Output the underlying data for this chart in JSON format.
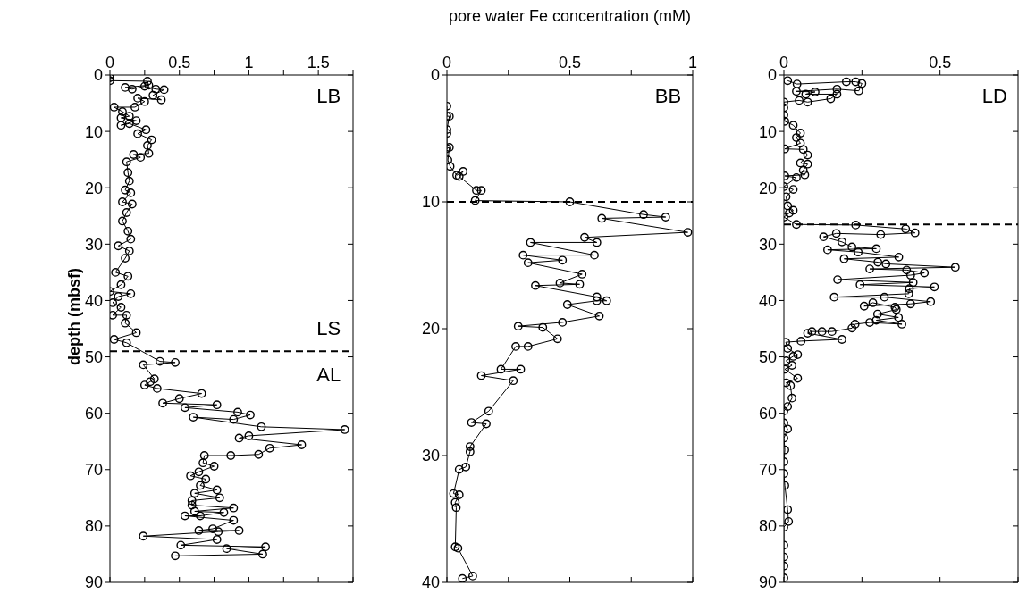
{
  "chart_data": [
    {
      "type": "line",
      "ylabel": "depth (mbsf)",
      "xlim": [
        0,
        1.75
      ],
      "xticks": [
        0,
        {
          "value": 0.25,
          "label": null
        },
        0.5,
        {
          "value": 0.75,
          "label": null
        },
        1,
        {
          "value": 1.25,
          "label": null
        },
        1.5,
        {
          "value": 1.75,
          "label": null
        }
      ],
      "ylim": [
        90,
        0
      ],
      "yticks": [
        0,
        10,
        20,
        30,
        40,
        50,
        60,
        70,
        80,
        90
      ],
      "marker": "circle",
      "grid": false,
      "legend": false,
      "ref_lines": [
        {
          "axis": "y",
          "value": 49,
          "line_style": "dashed",
          "color": "#000000"
        }
      ],
      "annotations": [
        "LB",
        "LS",
        "AL"
      ],
      "series": [
        {
          "color": "#000000",
          "x": [
            0,
            0,
            0,
            0.27,
            0.28,
            0.11,
            0.16,
            0.25,
            0.33,
            0.39,
            0.31,
            0.37,
            0.2,
            0.25,
            0.18,
            0.03,
            0.09,
            0.14,
            0.08,
            0.19,
            0.08,
            0.14,
            0.26,
            0.2,
            0.3,
            0.27,
            0.28,
            0.17,
            0.22,
            0.12,
            0.13,
            0.14,
            0.11,
            0.15,
            0.09,
            0.16,
            0.12,
            0.09,
            0.13,
            0.15,
            0.06,
            0.14,
            0.11,
            0.04,
            0.13,
            0.08,
            0,
            0.15,
            0.06,
            0.02,
            0.08,
            0.02,
            0.12,
            0.11,
            0.19,
            0.03,
            0.12,
            0.36,
            0.47,
            0.24,
            0.32,
            0.29,
            0.25,
            0.34,
            0.66,
            0.5,
            0.38,
            0.77,
            0.54,
            0.92,
            1.01,
            0.89,
            0.6,
            1.09,
            1.69,
            1.0,
            0.93,
            1.38,
            1.15,
            1.07,
            0.87,
            0.68,
            0.67,
            0.75,
            0.64,
            0.58,
            0.69,
            0.65,
            0.77,
            0.61,
            0.79,
            0.59,
            0.59,
            0.89,
            0.61,
            0.82,
            0.65,
            0.54,
            0.89,
            0.74,
            0.64,
            0.93,
            0.78,
            0.24,
            0.77,
            0.51,
            1.12,
            0.84,
            1.1,
            0.47
          ],
          "values": [
            0,
            0.5,
            1,
            1.1,
            1.8,
            2.2,
            2.5,
            2,
            2.5,
            2.6,
            3.6,
            4.4,
            4.1,
            4.7,
            5.7,
            5.7,
            6.5,
            7.3,
            7.6,
            8.1,
            8.9,
            8.6,
            9.7,
            10.4,
            11.5,
            12.5,
            13.9,
            14.1,
            14.6,
            15.4,
            17.3,
            18.8,
            20.4,
            20.9,
            22.5,
            22.9,
            24.4,
            25.9,
            27.7,
            29.1,
            30.3,
            31.2,
            32.5,
            35,
            35.7,
            37.2,
            38.4,
            38.8,
            39.3,
            40.4,
            41.2,
            42.6,
            42.6,
            44,
            45.7,
            46.9,
            47.5,
            50.8,
            51,
            51.4,
            53.9,
            54.4,
            55,
            55.6,
            56.5,
            57.4,
            58.2,
            58.5,
            59,
            59.8,
            60.3,
            61.1,
            60.7,
            62.4,
            62.9,
            64,
            64.4,
            65.6,
            66.2,
            67.3,
            67.5,
            67.5,
            68.8,
            69.4,
            70.4,
            71.1,
            71.7,
            72.8,
            73.6,
            74.2,
            75,
            75.5,
            76.3,
            76.8,
            77.4,
            77.6,
            78.2,
            78.2,
            79,
            80.5,
            80.8,
            80.8,
            81,
            81.8,
            82.4,
            83.4,
            83.7,
            84,
            85,
            85.3
          ]
        }
      ]
    },
    {
      "type": "line",
      "xlabel": "pore water Fe concentration (mM)",
      "xlim": [
        0,
        1
      ],
      "xticks": [
        0,
        {
          "value": 0.25,
          "label": null
        },
        0.5,
        {
          "value": 0.75,
          "label": null
        },
        1
      ],
      "ylim": [
        40,
        0
      ],
      "yticks": [
        0,
        10,
        20,
        30,
        40
      ],
      "marker": "circle",
      "grid": false,
      "legend": false,
      "ref_lines": [
        {
          "axis": "y",
          "value": 10,
          "line_style": "dashed",
          "color": "#000000"
        }
      ],
      "annotations": [
        "BB"
      ],
      "series": [
        {
          "color": "#000000",
          "x": [
            0,
            0,
            0.01,
            0,
            0,
            0,
            0.01,
            0.004,
            0.013,
            0.04,
            0.066,
            0.05,
            0.12,
            0.14,
            0.115,
            0.5,
            0.8,
            0.89,
            0.63,
            0.98,
            0.56,
            0.61,
            0.34,
            0.6,
            0.31,
            0.47,
            0.33,
            0.55,
            0.46,
            0.54,
            0.36,
            0.61,
            0.65,
            0.61,
            0.49,
            0.62,
            0.47,
            0.29,
            0.39,
            0.45,
            0.33,
            0.28,
            0.22,
            0.3,
            0.14,
            0.27,
            0.17,
            0.1,
            0.16,
            0.094,
            0.094,
            0.077,
            0.05,
            0.027,
            0.05,
            0.034,
            0.038,
            0.034,
            0.045,
            0.105,
            0.063
          ],
          "values": [
            2.45,
            3.25,
            3.25,
            4.3,
            4.6,
            5.8,
            5.7,
            6.7,
            7.2,
            7.9,
            7.6,
            8,
            9.1,
            9.1,
            9.9,
            10,
            11,
            11.2,
            11.3,
            12.4,
            12.8,
            13.2,
            13.2,
            14.2,
            14.2,
            14.6,
            14.8,
            15.7,
            16.4,
            16.5,
            16.6,
            17.5,
            17.8,
            17.8,
            18.1,
            19,
            19.5,
            19.8,
            19.9,
            20.8,
            21.4,
            21.4,
            23.2,
            23.2,
            23.7,
            24.1,
            26.5,
            27.4,
            27.5,
            29.3,
            29.7,
            30.9,
            31.1,
            33,
            33.1,
            33.7,
            34.1,
            37.2,
            37.3,
            39.5,
            39.7
          ]
        }
      ]
    },
    {
      "type": "line",
      "xlim": [
        0,
        0.75
      ],
      "xticks": [
        0,
        {
          "value": 0.25,
          "label": null
        },
        0.5,
        {
          "value": 0.75,
          "label": null
        }
      ],
      "ylim": [
        90,
        0
      ],
      "yticks": [
        0,
        10,
        20,
        30,
        40,
        50,
        60,
        70,
        80,
        90
      ],
      "marker": "circle",
      "grid": false,
      "legend": false,
      "ref_lines": [
        {
          "axis": "y",
          "value": 26.5,
          "line_style": "dashed",
          "color": "#000000"
        }
      ],
      "annotations": [
        "LD"
      ],
      "series": [
        {
          "color": "#000000",
          "x": [
            0.012,
            0.042,
            0.2,
            0.23,
            0.25,
            0.24,
            0.17,
            0.04,
            0.1,
            0.07,
            0.17,
            0.15,
            0.076,
            0.049,
            0,
            0,
            0,
            0.003,
            0.03,
            0.053,
            0.04,
            0.053,
            0.003,
            0.062,
            0.076,
            0.053,
            0.076,
            0.062,
            0.067,
            0.003,
            0.04,
            0,
            0.03,
            0.007,
            0.012,
            0.03,
            0.017,
            0,
            0.04,
            0.23,
            0.39,
            0.42,
            0.31,
            0.168,
            0.127,
            0.186,
            0.218,
            0.296,
            0.14,
            0.238,
            0.368,
            0.193,
            0.301,
            0.327,
            0.549,
            0.275,
            0.393,
            0.45,
            0.406,
            0.172,
            0.414,
            0.244,
            0.482,
            0.402,
            0.4,
            0.161,
            0.322,
            0.47,
            0.406,
            0.257,
            0.285,
            0.356,
            0.36,
            0.3,
            0.367,
            0.296,
            0.378,
            0.275,
            0.228,
            0.218,
            0.154,
            0.122,
            0.09,
            0.076,
            0.186,
            0.055,
            0.006,
            0.012,
            0.044,
            0.03,
            0.007,
            0.026,
            0.003,
            0.044,
            0.007,
            0.021,
            0.026,
            0.012,
            0,
            0,
            0.012,
            0,
            0.003,
            0,
            0,
            0.003,
            0.012,
            0.015,
            0,
            0,
            0,
            0,
            0
          ],
          "values": [
            1,
            1.6,
            1.2,
            1.2,
            1.5,
            2.8,
            2.5,
            2.9,
            3,
            3.4,
            3.4,
            4.2,
            4.8,
            4.5,
            4.8,
            5.8,
            7.1,
            8.2,
            8.9,
            10.3,
            11.1,
            12.1,
            13.1,
            13.2,
            14.2,
            15.6,
            15.8,
            16.9,
            17.7,
            17.9,
            18.2,
            19.8,
            20.3,
            21.6,
            23.2,
            24,
            24.5,
            25.2,
            26.5,
            26.6,
            27.3,
            28,
            28.3,
            28.1,
            28.7,
            29.6,
            30.5,
            30.8,
            31,
            31.4,
            32.3,
            32.6,
            33.2,
            33.5,
            34.1,
            34.4,
            34.6,
            35.1,
            35.5,
            36.3,
            36.8,
            37.2,
            37.6,
            37.9,
            38.8,
            39.4,
            39.4,
            40.2,
            40.6,
            41,
            40.4,
            41.2,
            41.6,
            42.4,
            43,
            43.5,
            44.2,
            43.9,
            44.2,
            44.9,
            45.5,
            45.5,
            45.5,
            45.8,
            46.9,
            47.2,
            47.4,
            48.5,
            49.6,
            49.9,
            50.7,
            51.5,
            52.2,
            53.8,
            54.6,
            55.1,
            57.3,
            58.8,
            59.6,
            61.7,
            62.8,
            64.4,
            66.5,
            68.6,
            70.7,
            72.8,
            77.1,
            79.2,
            80.2,
            83.4,
            85.5,
            87.1,
            89.2
          ]
        }
      ]
    }
  ]
}
